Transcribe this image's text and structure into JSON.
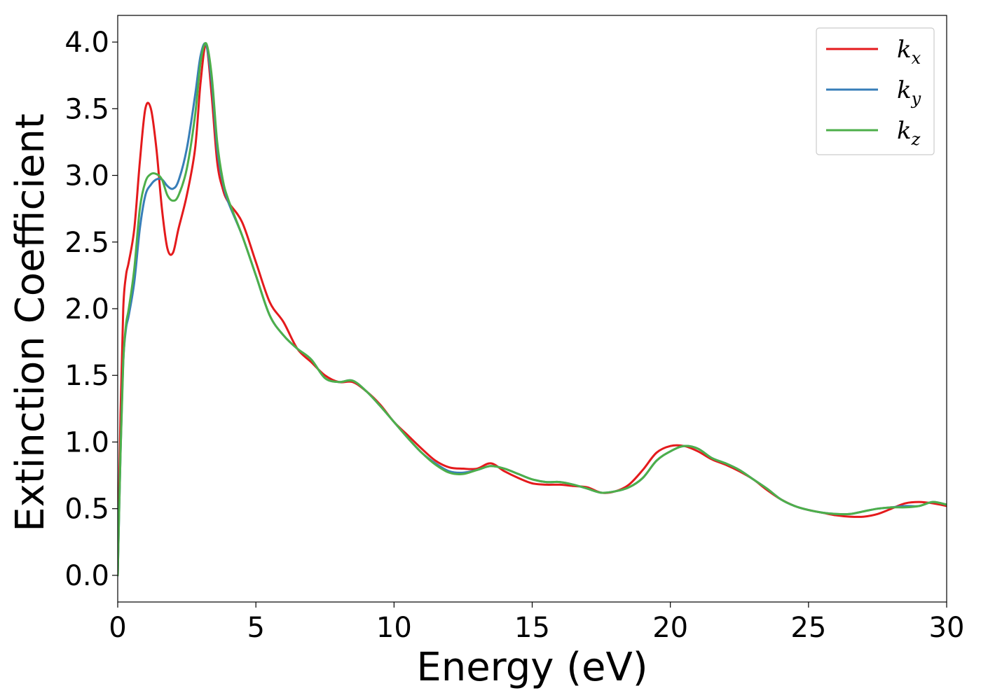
{
  "chart_data": {
    "type": "line",
    "xlabel": "Energy (eV)",
    "ylabel": "Extinction Coefficient",
    "xlim": [
      0,
      30
    ],
    "ylim": [
      -0.2,
      4.2
    ],
    "xticks": [
      0,
      5,
      10,
      15,
      20,
      25,
      30
    ],
    "xtick_labels": [
      "0",
      "5",
      "10",
      "15",
      "20",
      "25",
      "30"
    ],
    "yticks": [
      0.0,
      0.5,
      1.0,
      1.5,
      2.0,
      2.5,
      3.0,
      3.5,
      4.0
    ],
    "ytick_labels": [
      "0.0",
      "0.5",
      "1.0",
      "1.5",
      "2.0",
      "2.5",
      "3.0",
      "3.5",
      "4.0"
    ],
    "grid": false,
    "legend_position": "top-right",
    "series": [
      {
        "name": "kx",
        "label_base": "k",
        "label_sub": "x",
        "color": "#e41a1c",
        "x": [
          0,
          0.1,
          0.2,
          0.3,
          0.4,
          0.6,
          0.8,
          1.0,
          1.2,
          1.4,
          1.6,
          1.8,
          2.0,
          2.2,
          2.5,
          2.8,
          3.0,
          3.2,
          3.4,
          3.6,
          3.8,
          4.0,
          4.5,
          5.0,
          5.5,
          6.0,
          6.5,
          7.0,
          7.5,
          8.0,
          8.5,
          9.0,
          9.5,
          10.0,
          10.5,
          11.0,
          11.5,
          12.0,
          12.5,
          13.0,
          13.5,
          14.0,
          14.5,
          15.0,
          15.5,
          16.0,
          16.5,
          17.0,
          17.5,
          18.0,
          18.5,
          19.0,
          19.5,
          20.0,
          20.5,
          21.0,
          21.5,
          22.0,
          22.5,
          23.0,
          23.5,
          24.0,
          24.5,
          25.0,
          25.5,
          26.0,
          26.5,
          27.0,
          27.5,
          28.0,
          28.5,
          29.0,
          29.5,
          30.0
        ],
        "y": [
          0.0,
          1.2,
          2.0,
          2.25,
          2.35,
          2.6,
          3.1,
          3.5,
          3.5,
          3.2,
          2.75,
          2.45,
          2.42,
          2.6,
          2.85,
          3.2,
          3.7,
          3.98,
          3.6,
          3.1,
          2.9,
          2.8,
          2.65,
          2.35,
          2.05,
          1.9,
          1.7,
          1.6,
          1.5,
          1.45,
          1.45,
          1.38,
          1.28,
          1.15,
          1.05,
          0.95,
          0.86,
          0.81,
          0.8,
          0.8,
          0.84,
          0.78,
          0.73,
          0.69,
          0.68,
          0.68,
          0.67,
          0.66,
          0.62,
          0.63,
          0.68,
          0.79,
          0.92,
          0.97,
          0.97,
          0.93,
          0.87,
          0.83,
          0.78,
          0.72,
          0.64,
          0.57,
          0.52,
          0.49,
          0.47,
          0.45,
          0.44,
          0.44,
          0.46,
          0.5,
          0.54,
          0.55,
          0.54,
          0.52
        ]
      },
      {
        "name": "ky",
        "label_base": "k",
        "label_sub": "y",
        "color": "#377eb8",
        "x": [
          0,
          0.1,
          0.2,
          0.3,
          0.4,
          0.6,
          0.8,
          1.0,
          1.2,
          1.4,
          1.6,
          1.8,
          2.0,
          2.2,
          2.5,
          2.8,
          3.0,
          3.2,
          3.4,
          3.6,
          3.8,
          4.0,
          4.5,
          5.0,
          5.5,
          6.0,
          6.5,
          7.0,
          7.5,
          8.0,
          8.5,
          9.0,
          9.5,
          10.0,
          10.5,
          11.0,
          11.5,
          12.0,
          12.5,
          13.0,
          13.5,
          14.0,
          14.5,
          15.0,
          15.5,
          16.0,
          16.5,
          17.0,
          17.5,
          18.0,
          18.5,
          19.0,
          19.5,
          20.0,
          20.5,
          21.0,
          21.5,
          22.0,
          22.5,
          23.0,
          23.5,
          24.0,
          24.5,
          25.0,
          25.5,
          26.0,
          26.5,
          27.0,
          27.5,
          28.0,
          28.5,
          29.0,
          29.5,
          30.0
        ],
        "y": [
          0.0,
          0.9,
          1.6,
          1.85,
          1.95,
          2.2,
          2.6,
          2.85,
          2.93,
          2.97,
          2.97,
          2.92,
          2.9,
          2.96,
          3.2,
          3.6,
          3.9,
          3.98,
          3.7,
          3.2,
          2.95,
          2.8,
          2.55,
          2.25,
          1.95,
          1.8,
          1.7,
          1.62,
          1.48,
          1.45,
          1.46,
          1.38,
          1.27,
          1.15,
          1.03,
          0.92,
          0.84,
          0.78,
          0.77,
          0.79,
          0.82,
          0.8,
          0.76,
          0.72,
          0.7,
          0.7,
          0.68,
          0.65,
          0.62,
          0.63,
          0.66,
          0.73,
          0.86,
          0.93,
          0.97,
          0.95,
          0.88,
          0.84,
          0.79,
          0.72,
          0.65,
          0.57,
          0.52,
          0.49,
          0.47,
          0.46,
          0.46,
          0.48,
          0.5,
          0.51,
          0.52,
          0.52,
          0.55,
          0.53
        ]
      },
      {
        "name": "kz",
        "label_base": "k",
        "label_sub": "z",
        "color": "#4daf4a",
        "x": [
          0,
          0.1,
          0.2,
          0.3,
          0.4,
          0.6,
          0.8,
          1.0,
          1.2,
          1.4,
          1.6,
          1.8,
          2.0,
          2.2,
          2.5,
          2.8,
          3.0,
          3.2,
          3.4,
          3.6,
          3.8,
          4.0,
          4.5,
          5.0,
          5.5,
          6.0,
          6.5,
          7.0,
          7.5,
          8.0,
          8.5,
          9.0,
          9.5,
          10.0,
          10.5,
          11.0,
          11.5,
          12.0,
          12.5,
          13.0,
          13.5,
          14.0,
          14.5,
          15.0,
          15.5,
          16.0,
          16.5,
          17.0,
          17.5,
          18.0,
          18.5,
          19.0,
          19.5,
          20.0,
          20.5,
          21.0,
          21.5,
          22.0,
          22.5,
          23.0,
          23.5,
          24.0,
          24.5,
          25.0,
          25.5,
          26.0,
          26.5,
          27.0,
          27.5,
          28.0,
          28.5,
          29.0,
          29.5,
          30.0
        ],
        "y": [
          0.0,
          0.9,
          1.6,
          1.88,
          2.0,
          2.3,
          2.75,
          2.95,
          3.01,
          3.01,
          2.97,
          2.85,
          2.81,
          2.85,
          3.05,
          3.45,
          3.85,
          3.99,
          3.75,
          3.25,
          2.97,
          2.82,
          2.55,
          2.25,
          1.95,
          1.8,
          1.7,
          1.62,
          1.48,
          1.45,
          1.46,
          1.38,
          1.27,
          1.15,
          1.03,
          0.92,
          0.83,
          0.77,
          0.76,
          0.79,
          0.82,
          0.8,
          0.76,
          0.72,
          0.7,
          0.7,
          0.68,
          0.65,
          0.62,
          0.63,
          0.66,
          0.73,
          0.86,
          0.93,
          0.97,
          0.95,
          0.88,
          0.84,
          0.79,
          0.72,
          0.65,
          0.57,
          0.52,
          0.49,
          0.47,
          0.46,
          0.46,
          0.48,
          0.5,
          0.51,
          0.51,
          0.52,
          0.55,
          0.53
        ]
      }
    ]
  }
}
